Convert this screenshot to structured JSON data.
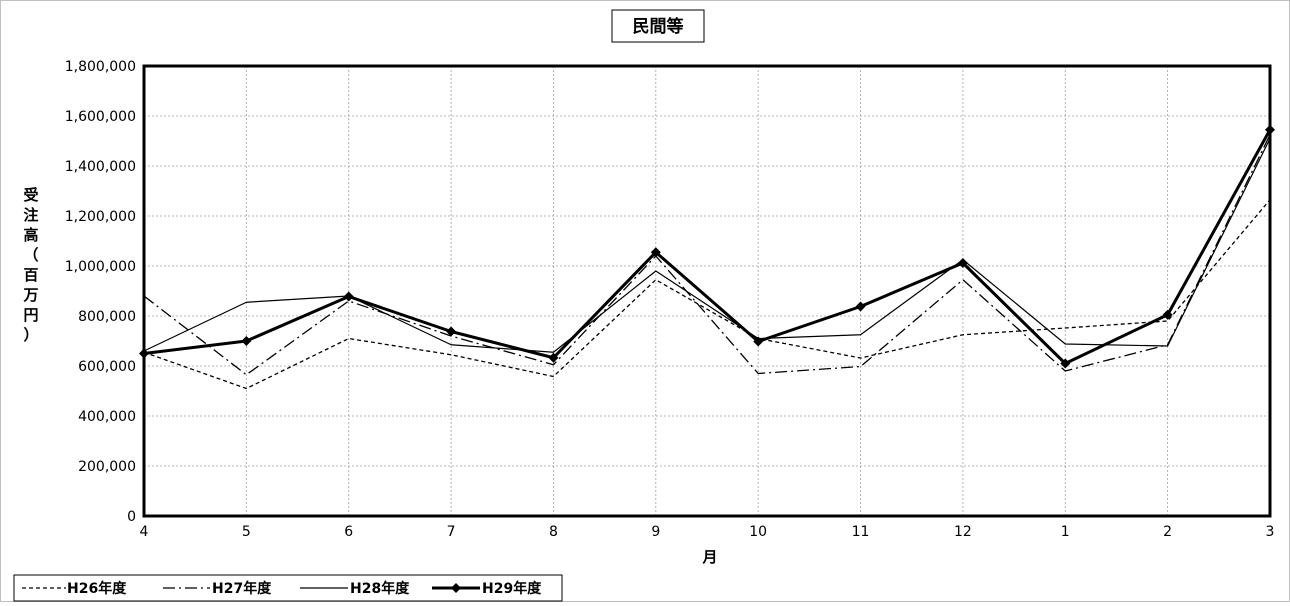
{
  "chart_data": {
    "type": "line",
    "title": "民間等",
    "xlabel": "月",
    "ylabel": "受注高（百万円）",
    "categories": [
      "4",
      "5",
      "6",
      "7",
      "8",
      "9",
      "10",
      "11",
      "12",
      "1",
      "2",
      "3"
    ],
    "y_ticks": [
      "0",
      "200,000",
      "400,000",
      "600,000",
      "800,000",
      "1,000,000",
      "1,200,000",
      "1,400,000",
      "1,600,000",
      "1,800,000"
    ],
    "ylim": [
      0,
      1800000
    ],
    "grid": true,
    "legend_position": "bottom-left",
    "series": [
      {
        "name": "H26年度",
        "style": "dashed",
        "values": [
          655000,
          510000,
          710000,
          645000,
          558000,
          945000,
          710000,
          632000,
          725000,
          752000,
          780000,
          1265000
        ]
      },
      {
        "name": "H27年度",
        "style": "dash-dot",
        "values": [
          880000,
          565000,
          860000,
          720000,
          605000,
          1040000,
          570000,
          598000,
          945000,
          580000,
          685000,
          1525000
        ]
      },
      {
        "name": "H28年度",
        "style": "solid-thin",
        "values": [
          660000,
          855000,
          880000,
          685000,
          655000,
          980000,
          710000,
          725000,
          1025000,
          688000,
          680000,
          1510000
        ]
      },
      {
        "name": "H29年度",
        "style": "solid-thick-diamond",
        "values": [
          650000,
          700000,
          878000,
          738000,
          633000,
          1055000,
          698000,
          838000,
          1012000,
          610000,
          805000,
          1545000
        ]
      }
    ],
    "colors": {
      "line": "#000000",
      "grid": "#a0a0a0",
      "background": "#ffffff"
    }
  }
}
